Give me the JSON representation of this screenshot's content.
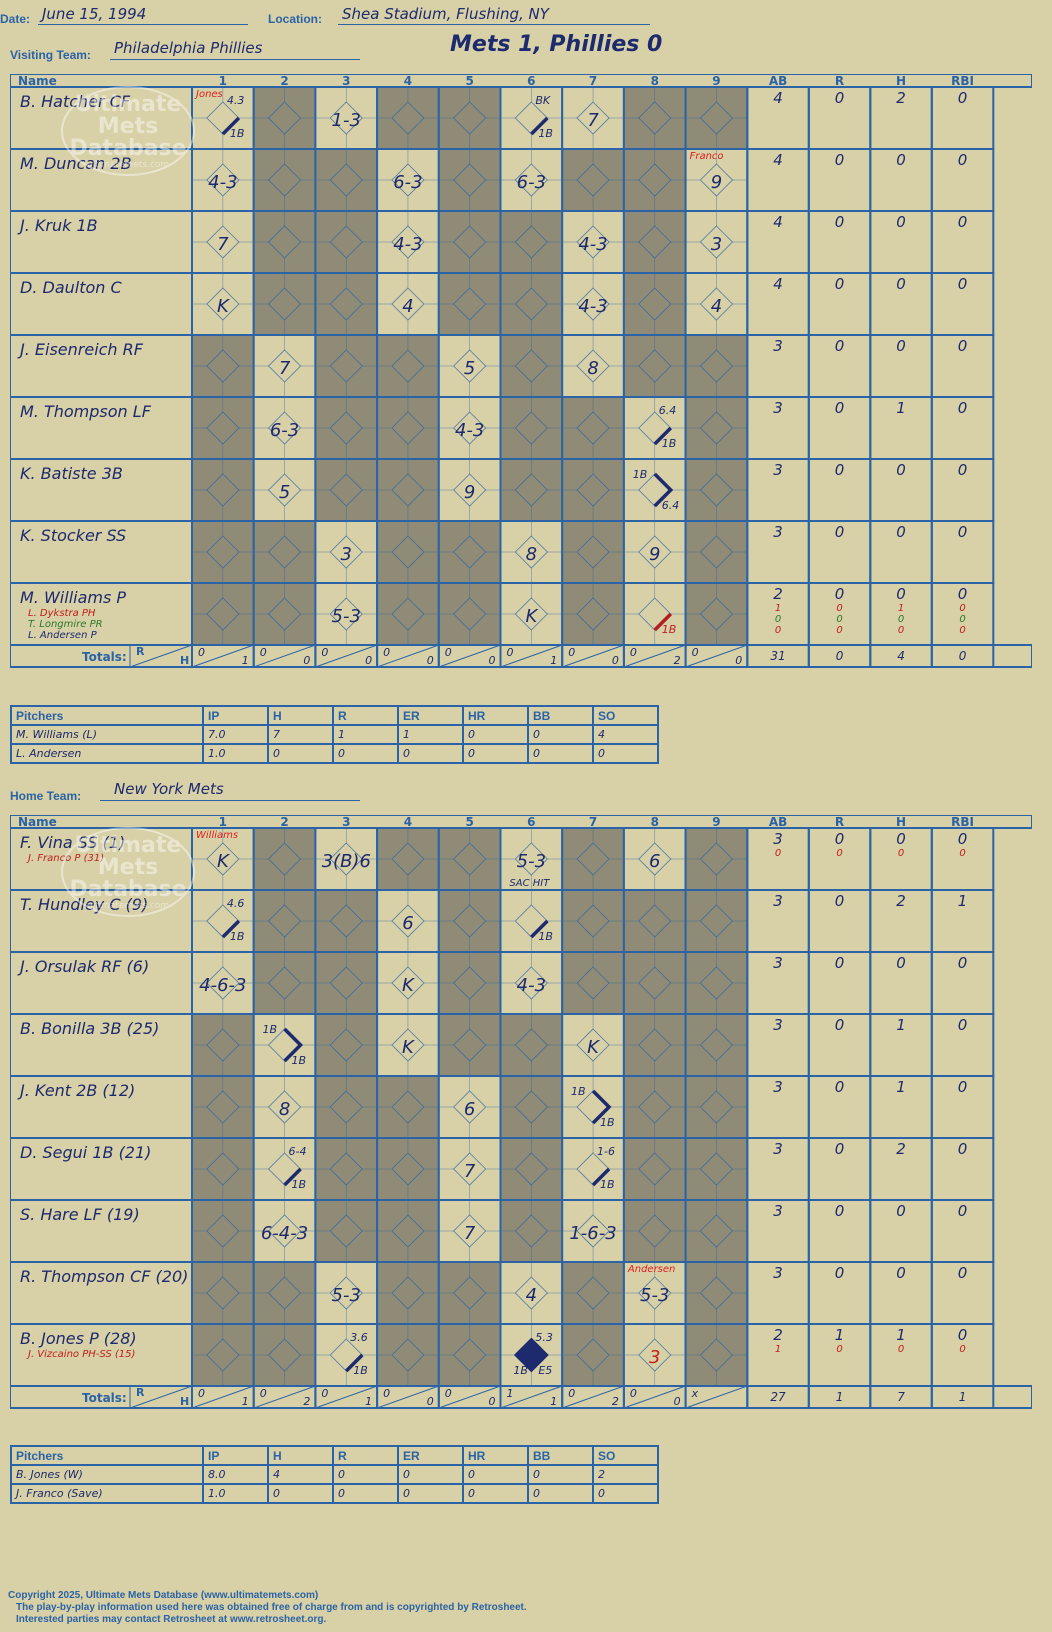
{
  "header": {
    "date_label": "Date:",
    "date": "June 15, 1994",
    "location_label": "Location:",
    "location": "Shea Stadium, Flushing, NY",
    "visiting_label": "Visiting Team:",
    "visiting_team": "Philadelphia Phillies",
    "home_label": "Home Team:",
    "home_team": "New York Mets",
    "result": "Mets 1, Phillies 0"
  },
  "columns": {
    "name": "Name",
    "innings": [
      "1",
      "2",
      "3",
      "4",
      "5",
      "6",
      "7",
      "8",
      "9"
    ],
    "stats": [
      "AB",
      "R",
      "H",
      "RBI"
    ],
    "totals_label": "Totals:",
    "rh_r": "R",
    "rh_h": "H"
  },
  "watermark": {
    "line1": "Ultimate",
    "line2": "Mets",
    "line3": "Database",
    "url": "ultimatemets.com"
  },
  "visitors": {
    "rows": [
      {
        "name": "B. Hatcher  CF",
        "subs": [],
        "stats": [
          [
            "4",
            "0",
            "2",
            "0"
          ]
        ],
        "cells": {
          "1": {
            "t": "",
            "note": "Jones",
            "noteColor": "#e02020",
            "tr": "4.3",
            "br": "1B",
            "path": "single"
          },
          "3": {
            "t": "1-3"
          },
          "6": {
            "t": "",
            "tr": "BK",
            "br": "1B",
            "path": "single"
          },
          "7": {
            "t": "7"
          }
        }
      },
      {
        "name": "M. Duncan  2B",
        "subs": [],
        "stats": [
          [
            "4",
            "0",
            "0",
            "0"
          ]
        ],
        "cells": {
          "1": {
            "t": "4-3"
          },
          "4": {
            "t": "6-3"
          },
          "6": {
            "t": "6-3"
          },
          "9": {
            "t": "9",
            "note": "Franco",
            "noteColor": "#e02020"
          }
        }
      },
      {
        "name": "J. Kruk  1B",
        "subs": [],
        "stats": [
          [
            "4",
            "0",
            "0",
            "0"
          ]
        ],
        "cells": {
          "1": {
            "t": "7"
          },
          "4": {
            "t": "4-3"
          },
          "7": {
            "t": "4-3"
          },
          "9": {
            "t": "3"
          }
        }
      },
      {
        "name": "D. Daulton  C",
        "subs": [],
        "stats": [
          [
            "4",
            "0",
            "0",
            "0"
          ]
        ],
        "cells": {
          "1": {
            "t": "K"
          },
          "4": {
            "t": "4"
          },
          "7": {
            "t": "4-3"
          },
          "9": {
            "t": "4"
          }
        }
      },
      {
        "name": "J. Eisenreich  RF",
        "subs": [],
        "stats": [
          [
            "3",
            "0",
            "0",
            "0"
          ]
        ],
        "cells": {
          "2": {
            "t": "7"
          },
          "5": {
            "t": "5"
          },
          "7": {
            "t": "8"
          }
        }
      },
      {
        "name": "M. Thompson  LF",
        "subs": [],
        "stats": [
          [
            "3",
            "0",
            "1",
            "0"
          ]
        ],
        "cells": {
          "2": {
            "t": "6-3"
          },
          "5": {
            "t": "4-3"
          },
          "8": {
            "t": "",
            "tr": "6.4",
            "br": "1B",
            "path": "single"
          }
        }
      },
      {
        "name": "K. Batiste  3B",
        "subs": [],
        "stats": [
          [
            "3",
            "0",
            "0",
            "0"
          ]
        ],
        "cells": {
          "2": {
            "t": "5"
          },
          "5": {
            "t": "9"
          },
          "8": {
            "t": "",
            "tl": "1B",
            "br": "6.4",
            "path": "second"
          }
        }
      },
      {
        "name": "K. Stocker  SS",
        "subs": [],
        "stats": [
          [
            "3",
            "0",
            "0",
            "0"
          ]
        ],
        "cells": {
          "3": {
            "t": "3"
          },
          "6": {
            "t": "8"
          },
          "8": {
            "t": "9"
          }
        }
      },
      {
        "name": "M. Williams  P",
        "subs": [
          {
            "n": "L. Dykstra  PH",
            "c": "#c02020"
          },
          {
            "n": "T. Longmire  PR",
            "c": "#2a7a2a"
          },
          {
            "n": "L. Andersen  P",
            "c": "#1d2a6e"
          }
        ],
        "stats": [
          [
            "2",
            "0",
            "0",
            "0"
          ],
          [
            "1",
            "0",
            "1",
            "0"
          ],
          [
            "0",
            "0",
            "0",
            "0"
          ],
          [
            "0",
            "0",
            "0",
            "0"
          ]
        ],
        "cells": {
          "3": {
            "t": "5-3"
          },
          "6": {
            "t": "K"
          },
          "8": {
            "t": "",
            "br": "1B",
            "brColor": "#c02020",
            "path": "single",
            "pathColor": "#b02020"
          }
        }
      }
    ],
    "totals": [
      [
        "0",
        "1"
      ],
      [
        "0",
        "0"
      ],
      [
        "0",
        "0"
      ],
      [
        "0",
        "0"
      ],
      [
        "0",
        "0"
      ],
      [
        "0",
        "1"
      ],
      [
        "0",
        "0"
      ],
      [
        "0",
        "2"
      ],
      [
        "0",
        "0"
      ]
    ],
    "totals_stats": [
      "31",
      "0",
      "4",
      "0"
    ]
  },
  "home": {
    "rows": [
      {
        "name": "F. Vina  SS (1)",
        "subs": [
          {
            "n": "J. Franco  P (31)",
            "c": "#c02020"
          }
        ],
        "stats": [
          [
            "3",
            "0",
            "0",
            "0"
          ],
          [
            "0",
            "0",
            "0",
            "0"
          ]
        ],
        "cells": {
          "1": {
            "t": "K",
            "note": "Williams",
            "noteColor": "#e02020"
          },
          "3": {
            "t": "3(B)6"
          },
          "6": {
            "t": "5-3",
            "bottom": "SAC HIT"
          },
          "8": {
            "t": "6"
          }
        }
      },
      {
        "name": "T. Hundley  C (9)",
        "subs": [],
        "stats": [
          [
            "3",
            "0",
            "2",
            "1"
          ]
        ],
        "cells": {
          "1": {
            "t": "",
            "tr": "4.6",
            "br": "1B",
            "path": "single"
          },
          "4": {
            "t": "6"
          },
          "6": {
            "t": "",
            "br": "1B",
            "path": "single"
          }
        }
      },
      {
        "name": "J. Orsulak  RF (6)",
        "subs": [],
        "stats": [
          [
            "3",
            "0",
            "0",
            "0"
          ]
        ],
        "cells": {
          "1": {
            "t": "4-6-3"
          },
          "4": {
            "t": "K"
          },
          "6": {
            "t": "4-3"
          }
        }
      },
      {
        "name": "B. Bonilla  3B (25)",
        "subs": [],
        "stats": [
          [
            "3",
            "0",
            "1",
            "0"
          ]
        ],
        "cells": {
          "2": {
            "t": "",
            "tl": "1B",
            "br": "1B",
            "path": "second"
          },
          "4": {
            "t": "K"
          },
          "7": {
            "t": "K"
          }
        }
      },
      {
        "name": "J. Kent  2B (12)",
        "subs": [],
        "stats": [
          [
            "3",
            "0",
            "1",
            "0"
          ]
        ],
        "cells": {
          "2": {
            "t": "8"
          },
          "5": {
            "t": "6"
          },
          "7": {
            "t": "",
            "tl": "1B",
            "br": "1B",
            "path": "second"
          }
        }
      },
      {
        "name": "D. Segui  1B (21)",
        "subs": [],
        "stats": [
          [
            "3",
            "0",
            "2",
            "0"
          ]
        ],
        "cells": {
          "2": {
            "t": "",
            "tr": "6-4",
            "br": "1B",
            "path": "single"
          },
          "5": {
            "t": "7"
          },
          "7": {
            "t": "",
            "tr": "1-6",
            "br": "1B",
            "path": "single"
          }
        }
      },
      {
        "name": "S. Hare  LF (19)",
        "subs": [],
        "stats": [
          [
            "3",
            "0",
            "0",
            "0"
          ]
        ],
        "cells": {
          "2": {
            "t": "6-4-3"
          },
          "5": {
            "t": "7"
          },
          "7": {
            "t": "1-6-3"
          }
        }
      },
      {
        "name": "R. Thompson  CF (20)",
        "subs": [],
        "stats": [
          [
            "3",
            "0",
            "0",
            "0"
          ]
        ],
        "cells": {
          "3": {
            "t": "5-3"
          },
          "6": {
            "t": "4"
          },
          "8": {
            "t": "5-3",
            "note": "Andersen",
            "noteColor": "#e02020"
          }
        }
      },
      {
        "name": "B. Jones  P (28)",
        "subs": [
          {
            "n": "J. Vizcaino  PH-SS (15)",
            "c": "#c02020"
          }
        ],
        "stats": [
          [
            "2",
            "1",
            "1",
            "0"
          ],
          [
            "1",
            "0",
            "0",
            "0"
          ]
        ],
        "cells": {
          "3": {
            "t": "",
            "tr": "3.6",
            "br": "1B",
            "path": "single"
          },
          "6": {
            "t": "",
            "tr": "5.3",
            "bl": "1B",
            "br": "E5",
            "path": "run"
          },
          "8": {
            "t": "3",
            "color": "#c02020"
          }
        }
      }
    ],
    "totals": [
      [
        "0",
        "1"
      ],
      [
        "0",
        "2"
      ],
      [
        "0",
        "1"
      ],
      [
        "0",
        "0"
      ],
      [
        "0",
        "0"
      ],
      [
        "1",
        "1"
      ],
      [
        "0",
        "2"
      ],
      [
        "0",
        "0"
      ],
      [
        "x",
        ""
      ]
    ],
    "totals_stats": [
      "27",
      "1",
      "7",
      "1"
    ]
  },
  "visitor_pitching": {
    "label": "Pitchers",
    "headers": [
      "IP",
      "H",
      "R",
      "ER",
      "HR",
      "BB",
      "SO"
    ],
    "rows": [
      {
        "name": "M. Williams  (L)",
        "vals": [
          "7.0",
          "7",
          "1",
          "1",
          "0",
          "0",
          "4"
        ]
      },
      {
        "name": "L. Andersen",
        "vals": [
          "1.0",
          "0",
          "0",
          "0",
          "0",
          "0",
          "0"
        ]
      }
    ]
  },
  "home_pitching": {
    "label": "Pitchers",
    "headers": [
      "IP",
      "H",
      "R",
      "ER",
      "HR",
      "BB",
      "SO"
    ],
    "rows": [
      {
        "name": "B. Jones  (W)",
        "vals": [
          "8.0",
          "4",
          "0",
          "0",
          "0",
          "0",
          "2"
        ]
      },
      {
        "name": "J. Franco  (Save)",
        "vals": [
          "1.0",
          "0",
          "0",
          "0",
          "0",
          "0",
          "0"
        ]
      }
    ]
  },
  "footer": {
    "line1": "Copyright 2025, Ultimate Mets Database (www.ultimatemets.com)",
    "line2": "The play-by-play information used here was obtained free of charge from and is copyrighted by Retrosheet.",
    "line3": "Interested parties may contact Retrosheet at www.retrosheet.org."
  },
  "colors": {
    "background": "#d8d0a6",
    "grid_line": "#2a63a6",
    "inactive_cell": "#8f8b76",
    "ink": "#1d2a6e",
    "note_red": "#e02020"
  }
}
